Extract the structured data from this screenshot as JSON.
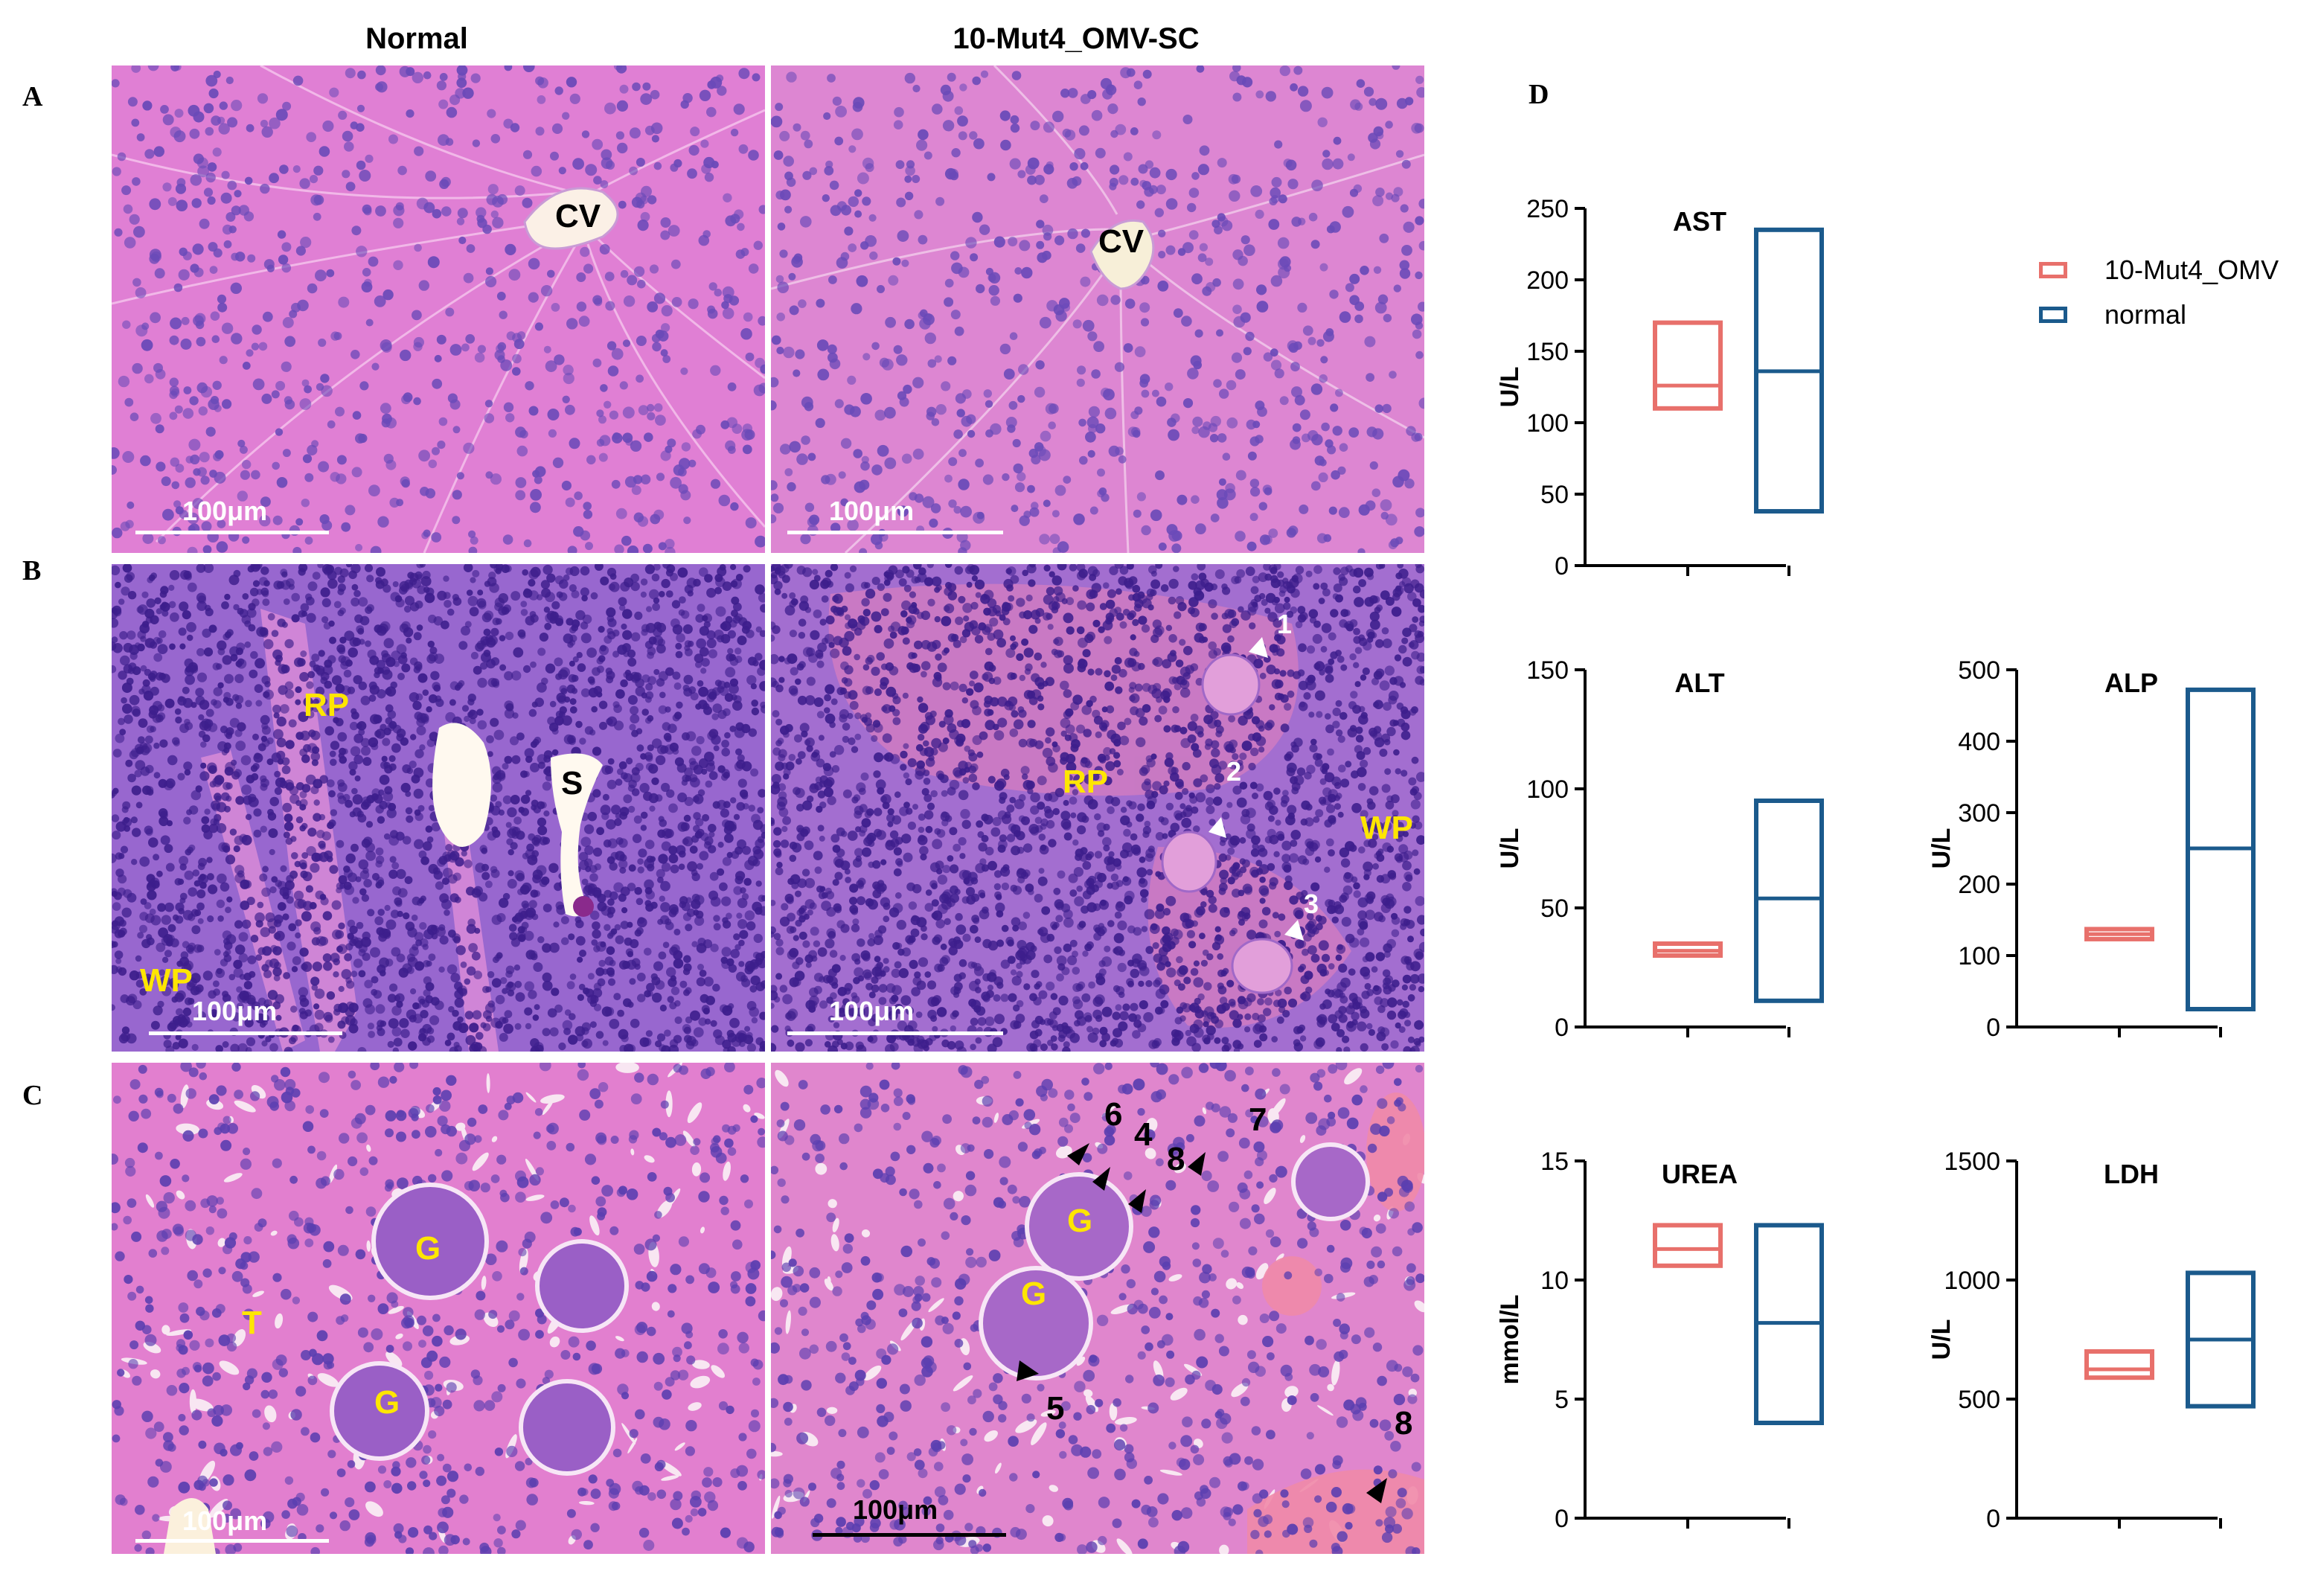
{
  "headers": {
    "left": "Normal",
    "right": "10-Mut4_OMV-SC"
  },
  "row_labels": {
    "a": "A",
    "b": "B",
    "c": "C",
    "d": "D"
  },
  "scale_label": "100μm",
  "liver": {
    "normal_label": "CV",
    "treated_label": "CV"
  },
  "spleen": {
    "normal": {
      "rp": "RP",
      "s": "S",
      "wp": "WP"
    },
    "treated": {
      "rp": "RP",
      "wp": "WP",
      "n1": "1",
      "n2": "2",
      "n3": "3"
    }
  },
  "kidney": {
    "normal": {
      "g1": "G",
      "g2": "G",
      "t": "T"
    },
    "treated": {
      "g1": "G",
      "g2": "G",
      "n6": "6",
      "n4": "4",
      "n8a": "8",
      "n7": "7",
      "n5": "5",
      "n8b": "8"
    }
  },
  "legend": [
    {
      "name": "10-Mut4_OMV",
      "color": "#e8706b"
    },
    {
      "name": "normal",
      "color": "#1b5a8c"
    }
  ],
  "colors": {
    "he_pink": "#e27fd3",
    "nucleus": "#5b3fb0",
    "spleen_bg": "#9a6ad0"
  },
  "chart_data": [
    {
      "type": "box",
      "title": "AST",
      "ylabel": "U/L",
      "ylim": [
        0,
        250
      ],
      "yticks": [
        0,
        50,
        100,
        150,
        200,
        250
      ],
      "series": [
        {
          "name": "10-Mut4_OMV",
          "min": 110,
          "median": 126,
          "max": 170
        },
        {
          "name": "normal",
          "min": 38,
          "median": 136,
          "max": 235
        }
      ]
    },
    {
      "type": "box",
      "title": "ALT",
      "ylabel": "U/L",
      "ylim": [
        0,
        150
      ],
      "yticks": [
        0,
        50,
        100,
        150
      ],
      "series": [
        {
          "name": "10-Mut4_OMV",
          "min": 30,
          "median": 32,
          "max": 35
        },
        {
          "name": "normal",
          "min": 11,
          "median": 54,
          "max": 95
        }
      ]
    },
    {
      "type": "box",
      "title": "ALP",
      "ylabel": "U/L",
      "ylim": [
        0,
        500
      ],
      "yticks": [
        0,
        100,
        200,
        300,
        400,
        500
      ],
      "series": [
        {
          "name": "10-Mut4_OMV",
          "min": 123,
          "median": 130,
          "max": 137
        },
        {
          "name": "normal",
          "min": 25,
          "median": 250,
          "max": 472
        }
      ]
    },
    {
      "type": "box",
      "title": "UREA",
      "ylabel": "mmol/L",
      "ylim": [
        0,
        15
      ],
      "yticks": [
        0,
        5,
        10,
        15
      ],
      "series": [
        {
          "name": "10-Mut4_OMV",
          "min": 10.6,
          "median": 11.3,
          "max": 12.3
        },
        {
          "name": "normal",
          "min": 4.0,
          "median": 8.2,
          "max": 12.3
        }
      ]
    },
    {
      "type": "box",
      "title": "LDH",
      "ylabel": "U/L",
      "ylim": [
        0,
        1500
      ],
      "yticks": [
        0,
        500,
        1000,
        1500
      ],
      "series": [
        {
          "name": "10-Mut4_OMV",
          "min": 590,
          "median": 625,
          "max": 700
        },
        {
          "name": "normal",
          "min": 470,
          "median": 750,
          "max": 1030
        }
      ]
    }
  ]
}
